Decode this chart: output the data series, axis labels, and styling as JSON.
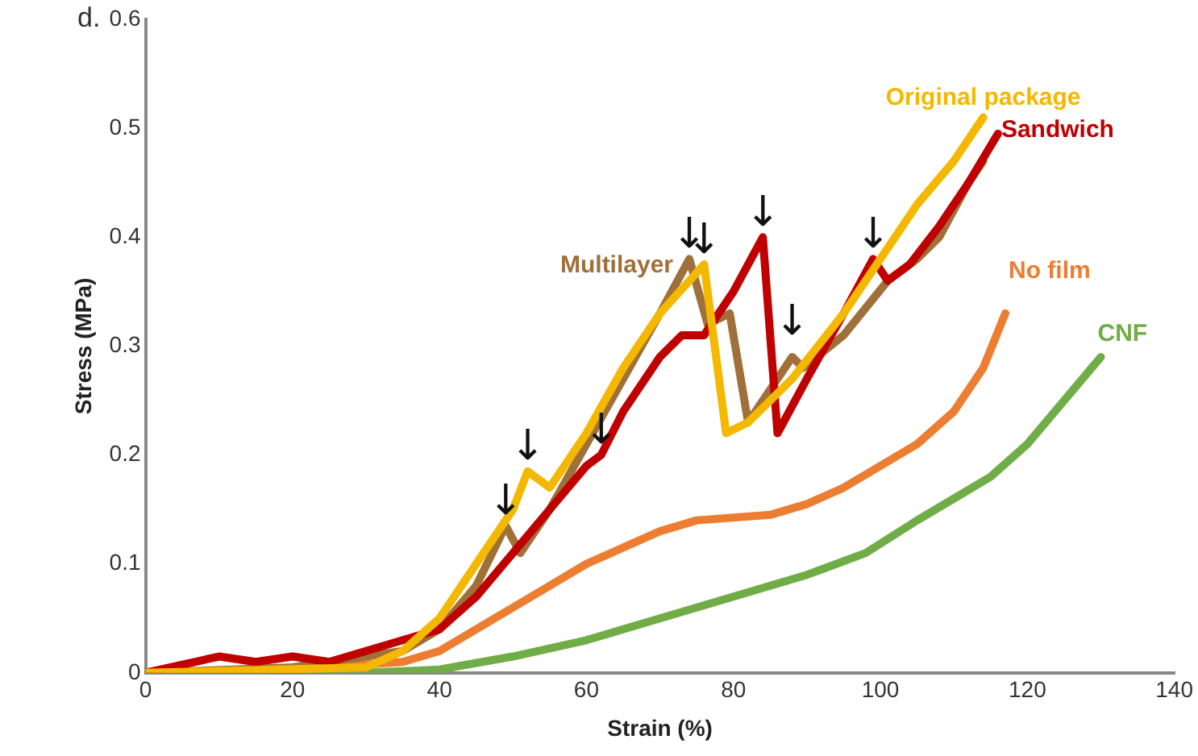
{
  "chart_data": {
    "type": "line",
    "title": "d.",
    "xlabel": "Strain (%)",
    "ylabel": "Stress (MPa)",
    "xlim": [
      0,
      140
    ],
    "xticks": [
      0,
      20,
      40,
      60,
      80,
      100,
      120,
      140
    ],
    "ylim": [
      0,
      0.6
    ],
    "yticks": [
      0,
      0.1,
      0.2,
      0.3,
      0.4,
      0.5,
      0.6
    ],
    "grid": false,
    "legend": false,
    "marker": "none",
    "line_style": "solid",
    "series": [
      {
        "name": "Original package",
        "color": "#f5b800",
        "x": [
          0,
          30,
          35,
          40,
          45,
          50,
          52,
          55,
          60,
          65,
          70,
          76,
          79,
          82,
          88,
          95,
          100,
          105,
          110,
          114
        ],
        "values": [
          0,
          0.005,
          0.02,
          0.05,
          0.1,
          0.15,
          0.185,
          0.17,
          0.22,
          0.28,
          0.33,
          0.375,
          0.22,
          0.23,
          0.27,
          0.33,
          0.38,
          0.43,
          0.47,
          0.51
        ]
      },
      {
        "name": "Sandwich",
        "color": "#c00000",
        "x": [
          0,
          10,
          15,
          20,
          25,
          30,
          35,
          40,
          45,
          50,
          55,
          60,
          62,
          65,
          70,
          73,
          76,
          80,
          84,
          86,
          90,
          95,
          99,
          101,
          104,
          108,
          112,
          116
        ],
        "values": [
          0,
          0.015,
          0.01,
          0.015,
          0.01,
          0.02,
          0.03,
          0.04,
          0.07,
          0.11,
          0.15,
          0.19,
          0.2,
          0.24,
          0.29,
          0.31,
          0.31,
          0.35,
          0.4,
          0.22,
          0.27,
          0.33,
          0.38,
          0.36,
          0.375,
          0.41,
          0.45,
          0.495
        ]
      },
      {
        "name": "Multilayer",
        "color": "#a0703a",
        "x": [
          0,
          20,
          35,
          40,
          45,
          49,
          51,
          55,
          60,
          65,
          70,
          74,
          76.5,
          79.5,
          82,
          85,
          88,
          89.5,
          95,
          101,
          105,
          108,
          112,
          114
        ],
        "values": [
          0,
          0.005,
          0.02,
          0.04,
          0.08,
          0.135,
          0.11,
          0.15,
          0.21,
          0.27,
          0.33,
          0.38,
          0.32,
          0.33,
          0.23,
          0.26,
          0.29,
          0.28,
          0.31,
          0.36,
          0.38,
          0.4,
          0.45,
          0.47
        ]
      },
      {
        "name": "No film",
        "color": "#ed7d31",
        "x": [
          0,
          20,
          35,
          40,
          45,
          50,
          55,
          60,
          65,
          70,
          75,
          85,
          90,
          95,
          100,
          105,
          110,
          114,
          117
        ],
        "values": [
          0,
          0.003,
          0.01,
          0.02,
          0.04,
          0.06,
          0.08,
          0.1,
          0.115,
          0.13,
          0.14,
          0.145,
          0.155,
          0.17,
          0.19,
          0.21,
          0.24,
          0.28,
          0.33
        ]
      },
      {
        "name": "CNF",
        "color": "#70ad47",
        "x": [
          0,
          30,
          40,
          50,
          60,
          70,
          80,
          90,
          98,
          105,
          110,
          115,
          120,
          125,
          130
        ],
        "values": [
          0,
          0,
          0.003,
          0.015,
          0.03,
          0.05,
          0.07,
          0.09,
          0.11,
          0.14,
          0.16,
          0.18,
          0.21,
          0.25,
          0.29
        ]
      }
    ],
    "annotations": [
      {
        "text": "↓",
        "x": 49,
        "y": 0.135
      },
      {
        "text": "↓",
        "x": 52,
        "y": 0.185
      },
      {
        "text": "↓",
        "x": 62,
        "y": 0.2
      },
      {
        "text": "↓",
        "x": 74,
        "y": 0.38
      },
      {
        "text": "↓",
        "x": 76,
        "y": 0.375
      },
      {
        "text": "↓",
        "x": 84,
        "y": 0.4
      },
      {
        "text": "↓",
        "x": 88,
        "y": 0.3
      },
      {
        "text": "↓",
        "x": 99,
        "y": 0.38
      }
    ]
  }
}
